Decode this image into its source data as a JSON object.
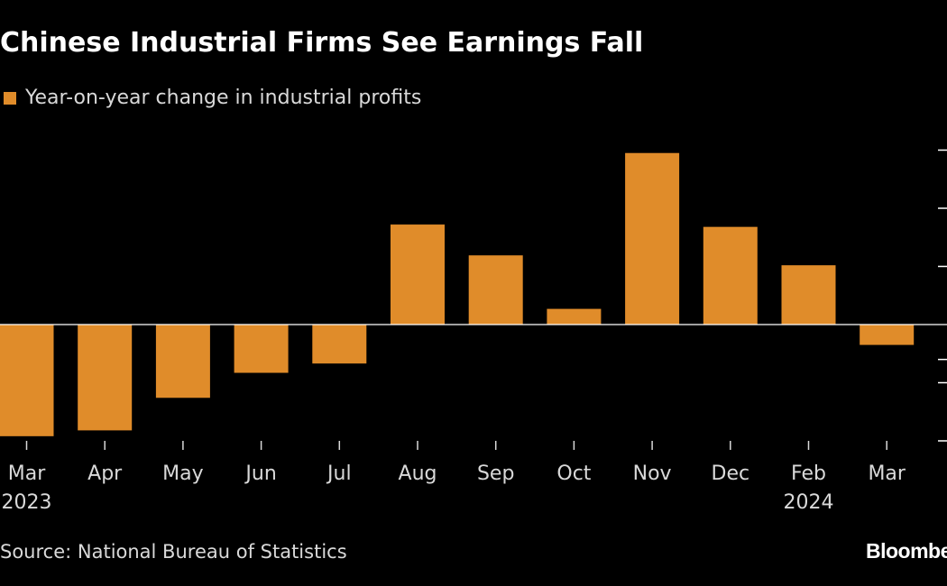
{
  "title": "Chinese Industrial Firms See Earnings Fall",
  "legend": {
    "label": "Year-on-year change in industrial profits",
    "color": "#E08C2A"
  },
  "source": "Source: National Bureau of Statistics",
  "brand": "Bloomberg",
  "colors": {
    "background": "#000000",
    "bar": "#E08C2A",
    "axis": "#FFFFFF",
    "text": "#D9D9D9"
  },
  "chart_data": {
    "type": "bar",
    "title": "Chinese Industrial Firms See Earnings Fall",
    "ylabel": "Year-on-year change in industrial profits",
    "categories": [
      "Mar",
      "Apr",
      "May",
      "Jun",
      "Jul",
      "Aug",
      "Sep",
      "Oct",
      "Nov",
      "Dec",
      "Feb",
      "Mar"
    ],
    "year_labels": [
      "2023",
      "",
      "",
      "",
      "",
      "",
      "",
      "",
      "",
      "",
      "2024",
      ""
    ],
    "values": [
      -19.2,
      -18.2,
      -12.6,
      -8.3,
      -6.7,
      17.2,
      11.9,
      2.7,
      29.5,
      16.8,
      10.2,
      -3.5
    ],
    "ylim": [
      -20,
      30
    ],
    "grid": false,
    "legend_position": "top-left"
  }
}
